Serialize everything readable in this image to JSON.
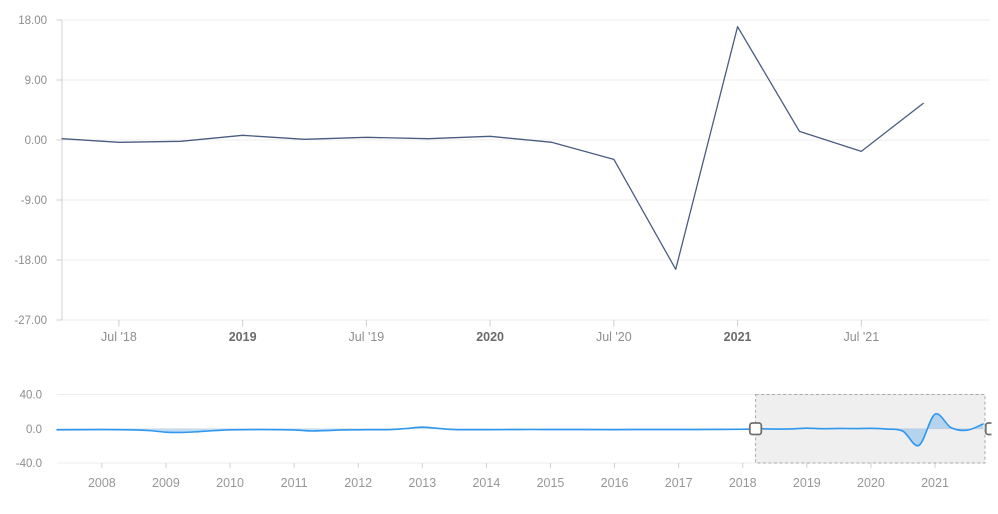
{
  "title": "",
  "colors": {
    "background": "#ffffff",
    "gridline": "#ececec",
    "axis_line": "#d9d9d9",
    "tick": "#cfcfcf",
    "label": "#8e8e8e",
    "label_bold": "#6b6b6b",
    "nav_label": "#979797",
    "main_line": "#4a5d81",
    "nav_line": "#2f97ee",
    "nav_fill": "rgba(77,160,235,0.35)",
    "selection_fill": "rgba(130,135,140,0.13)",
    "selection_border": "#aaaaaa",
    "grip_fill": "#ffffff",
    "grip_stroke": "#707070"
  },
  "chart_data": [
    {
      "id": "main",
      "type": "line",
      "title": "",
      "xlabel": "",
      "ylabel": "",
      "grid": true,
      "legend": "none",
      "x_range": [
        2018.27,
        2022.02
      ],
      "y_range": [
        -27,
        18
      ],
      "y_ticks": [
        {
          "value": 18,
          "label": "18.00"
        },
        {
          "value": 9,
          "label": "9.00"
        },
        {
          "value": 0,
          "label": "0.00"
        },
        {
          "value": -9,
          "label": "-9.00"
        },
        {
          "value": -18,
          "label": "-18.00"
        },
        {
          "value": -27,
          "label": "-27.00"
        }
      ],
      "x_ticks": [
        {
          "value": 2018.5,
          "label": "Jul '18",
          "bold": false
        },
        {
          "value": 2019.0,
          "label": "2019",
          "bold": true
        },
        {
          "value": 2019.5,
          "label": "Jul '19",
          "bold": false
        },
        {
          "value": 2020.0,
          "label": "2020",
          "bold": true
        },
        {
          "value": 2020.5,
          "label": "Jul '20",
          "bold": false
        },
        {
          "value": 2021.0,
          "label": "2021",
          "bold": true
        },
        {
          "value": 2021.5,
          "label": "Jul '21",
          "bold": false
        }
      ],
      "series": [
        {
          "name": "value",
          "points": [
            [
              2018.27,
              0.2
            ],
            [
              2018.5,
              -0.35
            ],
            [
              2018.75,
              -0.2
            ],
            [
              2019.0,
              0.7
            ],
            [
              2019.25,
              0.1
            ],
            [
              2019.5,
              0.4
            ],
            [
              2019.75,
              0.2
            ],
            [
              2020.0,
              0.55
            ],
            [
              2020.25,
              -0.35
            ],
            [
              2020.5,
              -2.9
            ],
            [
              2020.75,
              -19.4
            ],
            [
              2021.0,
              17.0
            ],
            [
              2021.25,
              1.3
            ],
            [
              2021.5,
              -1.7
            ],
            [
              2021.75,
              5.5
            ]
          ]
        }
      ]
    },
    {
      "id": "navigator",
      "type": "area",
      "title": "",
      "xlabel": "",
      "ylabel": "",
      "grid": true,
      "legend": "none",
      "smooth": true,
      "baseline": 0,
      "x_range": [
        2007.3,
        2021.78
      ],
      "y_range": [
        -40,
        40
      ],
      "y_ticks": [
        {
          "value": 40,
          "label": "40.0"
        },
        {
          "value": 0,
          "label": "0.0"
        },
        {
          "value": -40,
          "label": "-40.0"
        }
      ],
      "x_ticks": [
        {
          "value": 2008,
          "label": "2008"
        },
        {
          "value": 2009,
          "label": "2009"
        },
        {
          "value": 2010,
          "label": "2010"
        },
        {
          "value": 2011,
          "label": "2011"
        },
        {
          "value": 2012,
          "label": "2012"
        },
        {
          "value": 2013,
          "label": "2013"
        },
        {
          "value": 2014,
          "label": "2014"
        },
        {
          "value": 2015,
          "label": "2015"
        },
        {
          "value": 2016,
          "label": "2016"
        },
        {
          "value": 2017,
          "label": "2017"
        },
        {
          "value": 2018,
          "label": "2018"
        },
        {
          "value": 2019,
          "label": "2019"
        },
        {
          "value": 2020,
          "label": "2020"
        },
        {
          "value": 2021,
          "label": "2021"
        }
      ],
      "selection": {
        "start": 2018.2,
        "end": 2021.78
      },
      "series": [
        {
          "name": "value-preview",
          "points": [
            [
              2007.3,
              -1.2
            ],
            [
              2008.0,
              -1.0
            ],
            [
              2008.5,
              -1.4
            ],
            [
              2008.75,
              -2.2
            ],
            [
              2009.0,
              -4.0
            ],
            [
              2009.25,
              -4.3
            ],
            [
              2009.5,
              -3.4
            ],
            [
              2009.75,
              -2.2
            ],
            [
              2010.0,
              -1.3
            ],
            [
              2010.5,
              -0.9
            ],
            [
              2011.0,
              -1.4
            ],
            [
              2011.25,
              -2.6
            ],
            [
              2011.5,
              -2.1
            ],
            [
              2011.75,
              -1.4
            ],
            [
              2012.0,
              -1.2
            ],
            [
              2012.5,
              -0.9
            ],
            [
              2012.75,
              0.3
            ],
            [
              2013.0,
              1.8
            ],
            [
              2013.25,
              0.4
            ],
            [
              2013.5,
              -0.9
            ],
            [
              2014.0,
              -1.1
            ],
            [
              2014.5,
              -0.9
            ],
            [
              2015.0,
              -0.9
            ],
            [
              2015.5,
              -1.0
            ],
            [
              2016.0,
              -1.1
            ],
            [
              2016.5,
              -0.9
            ],
            [
              2017.0,
              -1.0
            ],
            [
              2017.5,
              -0.8
            ],
            [
              2018.0,
              -0.6
            ],
            [
              2018.25,
              0.0
            ],
            [
              2018.5,
              -0.35
            ],
            [
              2018.75,
              -0.2
            ],
            [
              2019.0,
              0.7
            ],
            [
              2019.25,
              0.1
            ],
            [
              2019.5,
              0.4
            ],
            [
              2019.75,
              0.2
            ],
            [
              2020.0,
              0.55
            ],
            [
              2020.25,
              -0.35
            ],
            [
              2020.5,
              -2.9
            ],
            [
              2020.75,
              -19.4
            ],
            [
              2021.0,
              17.0
            ],
            [
              2021.25,
              1.3
            ],
            [
              2021.5,
              -1.7
            ],
            [
              2021.75,
              5.5
            ]
          ]
        }
      ]
    }
  ]
}
